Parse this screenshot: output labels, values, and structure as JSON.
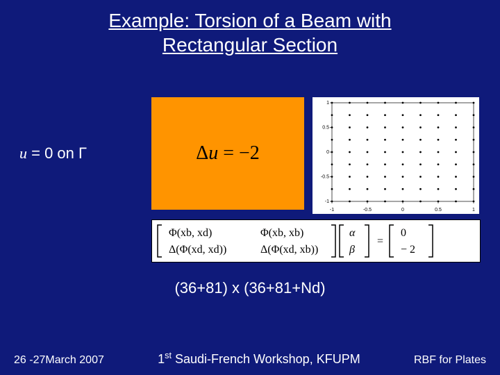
{
  "title_line1": "Example: Torsion of a Beam with",
  "title_line2": "Rectangular Section",
  "boundary_condition": {
    "var": "u",
    "eq": " = 0  on Γ"
  },
  "equation_box": {
    "bg_color": "#ff9400",
    "text": "Δu = −2"
  },
  "grid_plot": {
    "bg_color": "#ffffff",
    "nx": 9,
    "ny": 9,
    "x_labels": [
      "-1",
      "-0.5",
      "0",
      "0.5",
      "1"
    ],
    "y_labels": [
      "-1",
      "-0.5",
      "0",
      "0.5",
      "1"
    ],
    "dot_radius": 1.4,
    "dot_color": "#000000",
    "label_fontsize": 7
  },
  "matrix": {
    "m11": "Φ(xb, xd)",
    "m12": "Φ(xb, xb)",
    "m21": "Δ(Φ(xd, xd))",
    "m22": "Δ(Φ(xd, xb))",
    "v1": "α",
    "v2": "β",
    "r1": "0",
    "r2": "− 2"
  },
  "dimensions": "(36+81) x (36+81+Nd)",
  "footer": {
    "left": "26 -27March 2007",
    "center_pre": "1",
    "center_sup": "st",
    "center_post": " Saudi-French Workshop, KFUPM",
    "right": "RBF for Plates"
  },
  "colors": {
    "page_bg": "#0f1a7a",
    "text": "#ffffff"
  }
}
